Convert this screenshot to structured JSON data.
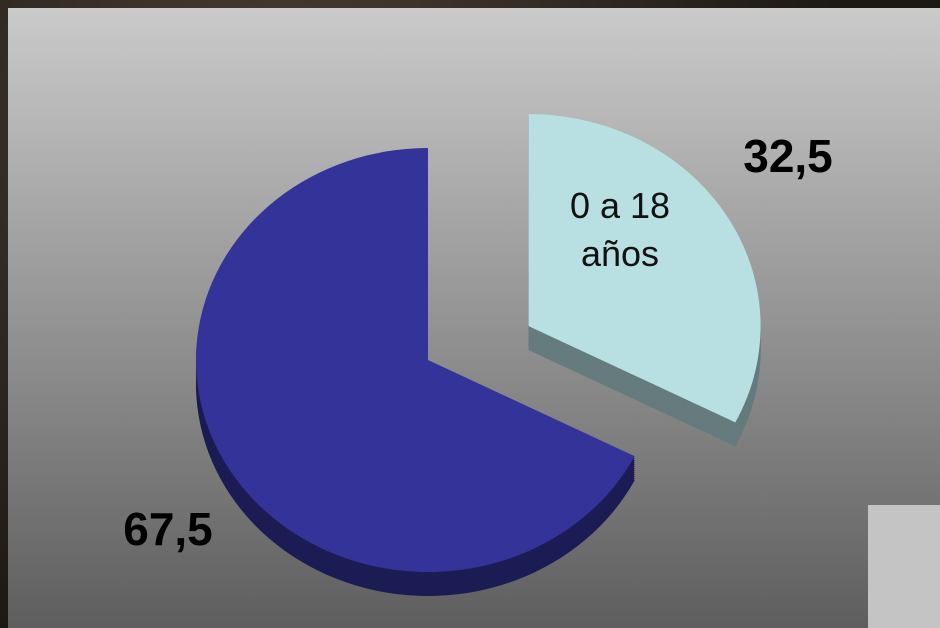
{
  "chart_data": {
    "type": "pie",
    "categories": [
      "0 a 18 años",
      null
    ],
    "values": [
      32.5,
      67.5
    ],
    "value_labels": [
      "32,5",
      "67,5"
    ],
    "colors": [
      "#b8e0e3",
      "#333399"
    ],
    "exploded": [
      true,
      false
    ]
  }
}
